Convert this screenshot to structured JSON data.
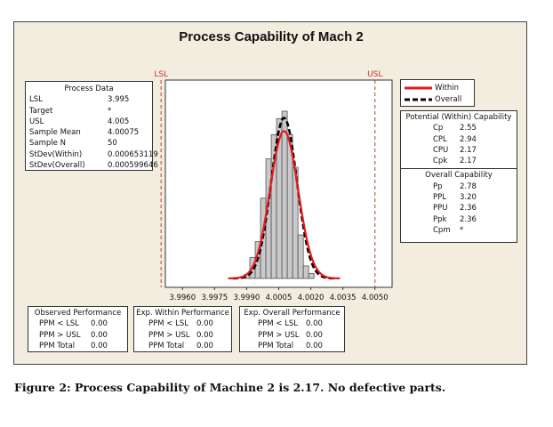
{
  "chart_data": {
    "type": "histogram",
    "title": "Process Capability of Mach 2",
    "x_ticks": [
      "3.9960",
      "3.9975",
      "3.9990",
      "4.0005",
      "4.0020",
      "4.0035",
      "4.0050"
    ],
    "xlim": [
      3.9952,
      4.0058
    ],
    "lsl": {
      "label": "LSL",
      "value": 3.995
    },
    "usl": {
      "label": "USL",
      "value": 4.005
    },
    "bins": [
      {
        "x0": 3.9989,
        "x1": 3.99915,
        "h": 0.5
      },
      {
        "x0": 3.99915,
        "x1": 3.9994,
        "h": 2.5
      },
      {
        "x0": 3.9994,
        "x1": 3.99965,
        "h": 4.4
      },
      {
        "x0": 3.99965,
        "x1": 3.9999,
        "h": 9.6
      },
      {
        "x0": 3.9999,
        "x1": 4.00015,
        "h": 14.3
      },
      {
        "x0": 4.00015,
        "x1": 4.0004,
        "h": 17.2
      },
      {
        "x0": 4.0004,
        "x1": 4.00065,
        "h": 19.1
      },
      {
        "x0": 4.00065,
        "x1": 4.0009,
        "h": 20.0
      },
      {
        "x0": 4.0009,
        "x1": 4.00115,
        "h": 17.2
      },
      {
        "x0": 4.00115,
        "x1": 4.0014,
        "h": 13.3
      },
      {
        "x0": 4.0014,
        "x1": 4.00165,
        "h": 5.2
      },
      {
        "x0": 4.00165,
        "x1": 4.0019,
        "h": 1.5
      },
      {
        "x0": 4.0019,
        "x1": 4.00215,
        "h": 0.6
      }
    ],
    "mean": 4.00075,
    "stdev_within": 0.000653119,
    "stdev_overall": 0.000599646,
    "series": [
      {
        "name": "Within",
        "color": "#e41a1c",
        "style": "solid"
      },
      {
        "name": "Overall",
        "color": "#000000",
        "style": "dashed"
      }
    ]
  },
  "process_data": {
    "title": "Process Data",
    "rows": [
      {
        "k": "LSL",
        "v": "3.995"
      },
      {
        "k": "Target",
        "v": "*"
      },
      {
        "k": "USL",
        "v": "4.005"
      },
      {
        "k": "Sample Mean",
        "v": "4.00075"
      },
      {
        "k": "Sample N",
        "v": "50"
      },
      {
        "k": "StDev(Within)",
        "v": "0.000653119"
      },
      {
        "k": "StDev(Overall)",
        "v": "0.000599646"
      }
    ]
  },
  "potential": {
    "title": "Potential (Within) Capability",
    "rows": [
      {
        "k": "Cp",
        "v": "2.55"
      },
      {
        "k": "CPL",
        "v": "2.94"
      },
      {
        "k": "CPU",
        "v": "2.17"
      },
      {
        "k": "Cpk",
        "v": "2.17"
      }
    ]
  },
  "overall": {
    "title": "Overall Capability",
    "rows": [
      {
        "k": "Pp",
        "v": "2.78"
      },
      {
        "k": "PPL",
        "v": "3.20"
      },
      {
        "k": "PPU",
        "v": "2.36"
      },
      {
        "k": "Ppk",
        "v": "2.36"
      },
      {
        "k": "Cpm",
        "v": "*"
      }
    ]
  },
  "observed": {
    "title": "Observed Performance",
    "rows": [
      {
        "k": "PPM < LSL",
        "v": "0.00"
      },
      {
        "k": "PPM > USL",
        "v": "0.00"
      },
      {
        "k": "PPM Total",
        "v": "0.00"
      }
    ]
  },
  "exp_within": {
    "title": "Exp. Within Performance",
    "rows": [
      {
        "k": "PPM < LSL",
        "v": "0.00"
      },
      {
        "k": "PPM > USL",
        "v": "0.00"
      },
      {
        "k": "PPM Total",
        "v": "0.00"
      }
    ]
  },
  "exp_overall": {
    "title": "Exp. Overall Performance",
    "rows": [
      {
        "k": "PPM < LSL",
        "v": "0.00"
      },
      {
        "k": "PPM > USL",
        "v": "0.00"
      },
      {
        "k": "PPM Total",
        "v": "0.00"
      }
    ]
  },
  "caption": "Figure 2:  Process Capability of Machine 2 is 2.17.  No defective parts."
}
